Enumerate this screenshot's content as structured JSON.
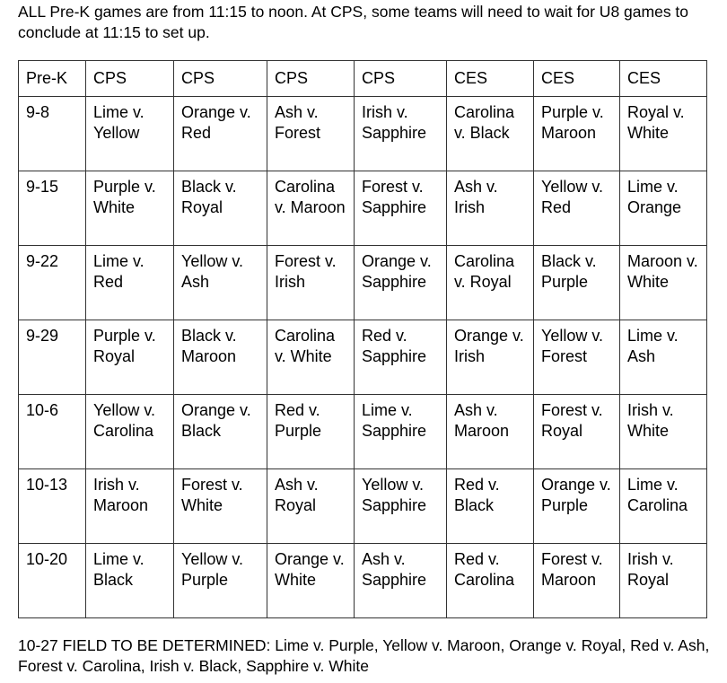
{
  "intro_text": "ALL Pre-K games are from 11:15 to noon.  At CPS, some teams will need to wait for U8 games to conclude at 11:15 to set up.",
  "schedule": {
    "headers": [
      "Pre-K",
      "CPS",
      "CPS",
      "CPS",
      "CPS",
      "CES",
      "CES",
      "CES"
    ],
    "rows": [
      [
        "9-8",
        "Lime v. Yellow",
        "Orange v. Red",
        "Ash v. Forest",
        "Irish  v. Sapphire",
        "Carolina v. Black",
        "Purple v. Maroon",
        "Royal v. White"
      ],
      [
        "9-15",
        "Purple v. White",
        "Black v. Royal",
        "Carolina v. Maroon",
        "Forest v. Sapphire",
        "Ash v. Irish",
        "Yellow v. Red",
        "Lime v. Orange"
      ],
      [
        "9-22",
        "Lime v. Red",
        "Yellow v. Ash",
        "Forest v. Irish",
        "Orange v. Sapphire",
        "Carolina v. Royal",
        "Black v. Purple",
        "Maroon v. White"
      ],
      [
        "9-29",
        "Purple v. Royal",
        "Black v. Maroon",
        "Carolina v. White",
        "Red v. Sapphire",
        "Orange v. Irish",
        "Yellow v. Forest",
        "Lime v. Ash"
      ],
      [
        "10-6",
        "Yellow v. Carolina",
        "Orange v. Black",
        "Red v. Purple",
        "Lime v. Sapphire",
        "Ash v. Maroon",
        "Forest v. Royal",
        "Irish  v. White"
      ],
      [
        "10-13",
        "Irish  v. Maroon",
        "Forest v. White",
        "Ash v. Royal",
        "Yellow v. Sapphire",
        "Red v. Black",
        "Orange v. Purple",
        "Lime v. Carolina"
      ],
      [
        "10-20",
        "Lime v. Black",
        "Yellow v. Purple",
        "Orange v. White",
        "Ash v. Sapphire",
        "Red v. Carolina",
        "Forest v. Maroon",
        "Irish  v. Royal"
      ]
    ]
  },
  "footer_text": "10-27 FIELD TO BE DETERMINED: Lime v. Purple, Yellow v. Maroon, Orange v. Royal, Red v. Ash, Forest v. Carolina, Irish  v. Black, Sapphire v. White"
}
